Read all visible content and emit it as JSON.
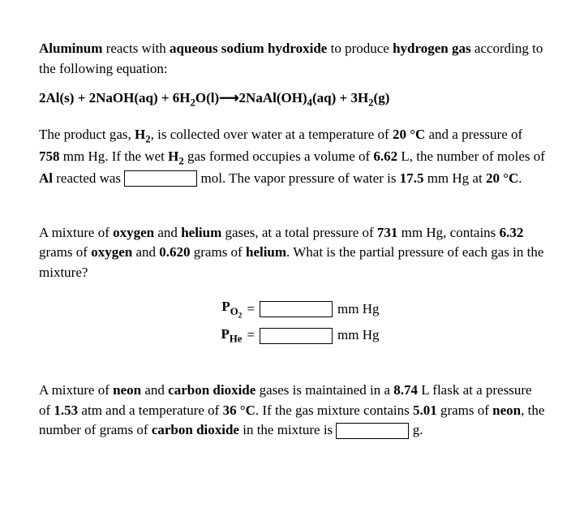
{
  "q1": {
    "intro_html": "<b>Aluminum</b> reacts with <b>aqueous sodium hydroxide</b> to produce <b>hydrogen gas</b> according to the following equation:",
    "equation_html": "2Al(s) + 2NaOH(aq) + 6H<sub>2</sub>O(l)⟶2NaAl(OH)<sub>4</sub>(aq) + 3H<sub>2</sub>(g)",
    "body_before_html": "The product gas, <b>H<sub>2</sub></b>, is collected over water at a temperature of <b>20 °C</b> and a pressure of <b>758</b> mm Hg. If the wet <b>H<sub>2</sub></b> gas formed occupies a volume of <b>6.62</b> L, the number of moles of <b>Al</b> reacted was ",
    "body_after_html": " mol. The vapor pressure of water is <b>17.5</b> mm Hg at <b>20 °C</b>."
  },
  "q2": {
    "body_html": "A mixture of <b>oxygen</b> and <b>helium</b> gases, at a total pressure of <b>731</b> mm Hg, contains <b>6.32</b> grams of <b>oxygen</b> and <b>0.620</b> grams of <b>helium</b>. What is the partial pressure of each gas in the mixture?",
    "rows": [
      {
        "label_html": "P<sub>O<sub>2</sub></sub>",
        "unit": "mm Hg"
      },
      {
        "label_html": "P<sub>He</sub>",
        "unit": "mm Hg"
      }
    ],
    "equals": "="
  },
  "q3": {
    "body_before_html": "A mixture of <b>neon</b> and <b>carbon dioxide</b> gases is maintained in a <b>8.74</b> L flask at a pressure of <b>1.53</b> atm and a temperature of <b>36 °C</b>. If the gas mixture contains <b>5.01</b> grams of <b>neon</b>, the number of grams of <b>carbon dioxide</b> in the mixture is ",
    "unit_after": " g."
  }
}
